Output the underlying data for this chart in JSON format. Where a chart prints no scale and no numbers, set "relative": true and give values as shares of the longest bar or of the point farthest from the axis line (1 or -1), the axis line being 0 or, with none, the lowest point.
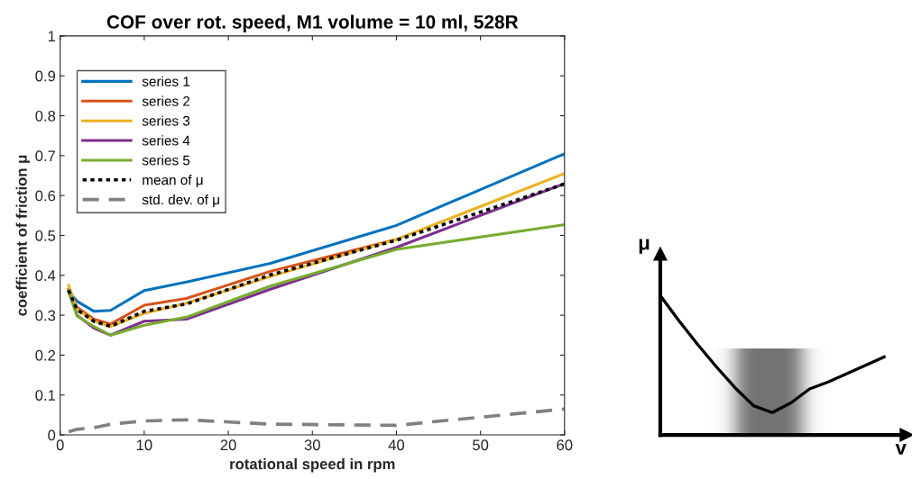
{
  "chart_data": [
    {
      "type": "line",
      "title": "COF over rot. speed, M1 volume = 10 ml, 528R",
      "xlabel": "rotational speed in rpm",
      "ylabel": "coefficient of friction μ",
      "x": [
        1,
        2,
        4,
        6,
        10,
        15,
        25,
        40,
        60
      ],
      "xlim": [
        0,
        60
      ],
      "xticks": [
        0,
        10,
        20,
        30,
        40,
        50,
        60
      ],
      "ylim": [
        0,
        1
      ],
      "yticks": [
        0,
        0.1,
        0.2,
        0.3,
        0.4,
        0.5,
        0.6,
        0.7,
        0.8,
        0.9,
        1
      ],
      "legend": "top left",
      "grid": false,
      "marker": "none",
      "series": [
        {
          "name": "series 1",
          "color": "#0072bd",
          "line_style": "solid",
          "values": [
            0.36,
            0.335,
            0.31,
            0.312,
            0.362,
            0.383,
            0.43,
            0.525,
            0.705
          ]
        },
        {
          "name": "series 2",
          "color": "#d95319",
          "line_style": "solid",
          "values": [
            0.365,
            0.32,
            0.29,
            0.278,
            0.325,
            0.342,
            0.41,
            0.49,
            null
          ]
        },
        {
          "name": "series 3",
          "color": "#edb120",
          "line_style": "solid",
          "values": [
            0.375,
            0.315,
            0.285,
            0.272,
            0.305,
            0.33,
            0.397,
            0.49,
            0.655
          ]
        },
        {
          "name": "series 4",
          "color": "#7e2f8e",
          "line_style": "solid",
          "values": [
            0.36,
            0.3,
            0.268,
            0.25,
            0.285,
            0.29,
            0.365,
            0.47,
            0.63
          ]
        },
        {
          "name": "series 5",
          "color": "#77ac30",
          "line_style": "solid",
          "values": [
            0.36,
            0.298,
            0.272,
            0.25,
            0.275,
            0.295,
            0.373,
            0.465,
            0.527
          ]
        },
        {
          "name": "mean of μ",
          "color": "#000000",
          "line_style": "dotted",
          "values": [
            0.363,
            0.314,
            0.285,
            0.272,
            0.31,
            0.328,
            0.401,
            0.488,
            0.629
          ]
        },
        {
          "name": "std. dev. of μ",
          "color": "#808080",
          "line_style": "dashed",
          "values": [
            0.008,
            0.014,
            0.018,
            0.027,
            0.035,
            0.038,
            0.027,
            0.024,
            0.065
          ]
        }
      ]
    },
    {
      "type": "line",
      "relative": true,
      "xlabel": "v",
      "ylabel": "μ",
      "tick_labels": false,
      "categories": [
        null,
        null,
        null,
        null,
        null,
        null,
        null,
        null,
        null,
        null,
        null,
        null,
        null
      ],
      "series": [
        {
          "color": "#000000",
          "values": [
            1.0,
            0.82,
            0.65,
            0.49,
            0.34,
            0.21,
            0.16,
            0.23,
            0.33,
            0.38,
            0.44,
            0.5,
            0.56
          ]
        }
      ]
    }
  ]
}
